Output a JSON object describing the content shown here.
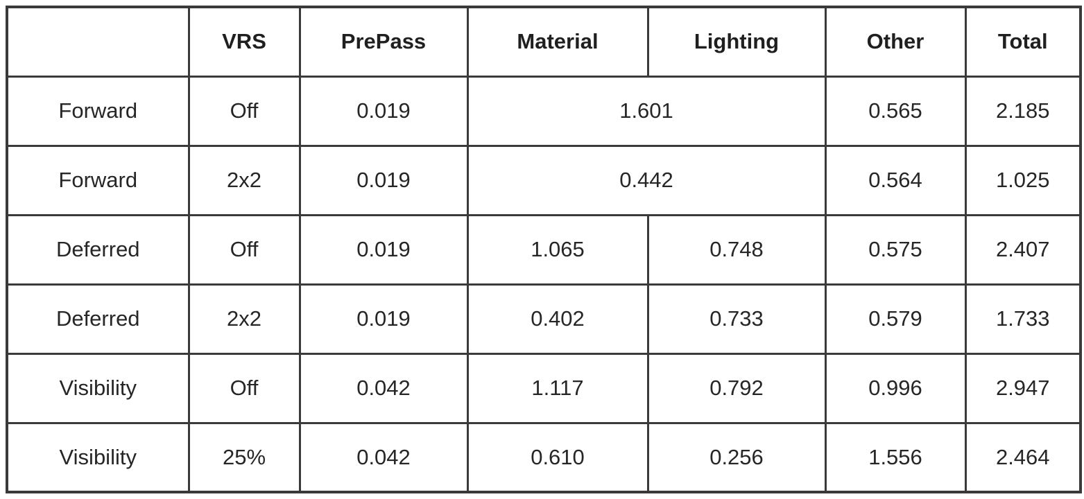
{
  "table": {
    "header": {
      "pipeline": "",
      "vrs": "VRS",
      "prepass": "PrePass",
      "material": "Material",
      "lighting": "Lighting",
      "other": "Other",
      "total": "Total"
    },
    "rows": [
      {
        "pipeline": "Forward",
        "vrs": "Off",
        "prepass": "0.019",
        "material_lighting": "1.601",
        "other": "0.565",
        "total": "2.185"
      },
      {
        "pipeline": "Forward",
        "vrs": "2x2",
        "prepass": "0.019",
        "material_lighting": "0.442",
        "other": "0.564",
        "total": "1.025"
      },
      {
        "pipeline": "Deferred",
        "vrs": "Off",
        "prepass": "0.019",
        "material": "1.065",
        "lighting": "0.748",
        "other": "0.575",
        "total": "2.407"
      },
      {
        "pipeline": "Deferred",
        "vrs": "2x2",
        "prepass": "0.019",
        "material": "0.402",
        "lighting": "0.733",
        "other": "0.579",
        "total": "1.733"
      },
      {
        "pipeline": "Visibility",
        "vrs": "Off",
        "prepass": "0.042",
        "material": "1.117",
        "lighting": "0.792",
        "other": "0.996",
        "total": "2.947"
      },
      {
        "pipeline": "Visibility",
        "vrs": "25%",
        "prepass": "0.042",
        "material": "0.610",
        "lighting": "0.256",
        "other": "1.556",
        "total": "2.464"
      }
    ]
  }
}
